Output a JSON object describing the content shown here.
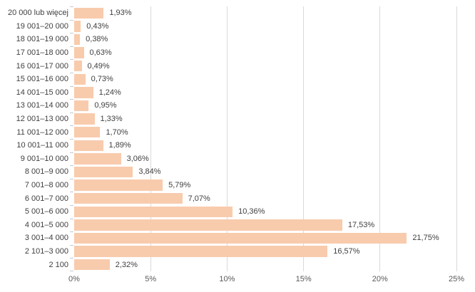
{
  "chart_data": {
    "type": "bar",
    "orientation": "horizontal",
    "title": "",
    "xlabel": "",
    "ylabel": "",
    "categories": [
      "20 000 lub więcej",
      "19 001–20 000",
      "18 001–19 000",
      "17 001–18 000",
      "16 001–17 000",
      "15 001–16 000",
      "14 001–15 000",
      "13 001–14 000",
      "12 001–13 000",
      "11 001–12 000",
      "10 001–11 000",
      "9 001–10 000",
      "8 001–9 000",
      "7 001–8 000",
      "6 001–7 000",
      "5 001–6 000",
      "4 001–5 000",
      "3 001–4 000",
      "2 101–3 000",
      "2 100"
    ],
    "values": [
      1.93,
      0.43,
      0.38,
      0.63,
      0.49,
      0.73,
      1.24,
      0.95,
      1.33,
      1.7,
      1.89,
      3.06,
      3.84,
      5.79,
      7.07,
      10.36,
      17.53,
      21.75,
      16.57,
      2.32
    ],
    "value_labels": [
      "1,93%",
      "0,43%",
      "0,38%",
      "0,63%",
      "0,49%",
      "0,73%",
      "1,24%",
      "0,95%",
      "1,33%",
      "1,70%",
      "1,89%",
      "3,06%",
      "3,84%",
      "5,79%",
      "7,07%",
      "10,36%",
      "17,53%",
      "21,75%",
      "16,57%",
      "2,32%"
    ],
    "x_ticks": [
      {
        "label": "0%",
        "value": 0
      },
      {
        "label": "5%",
        "value": 5
      },
      {
        "label": "10%",
        "value": 10
      },
      {
        "label": "15%",
        "value": 15
      },
      {
        "label": "20%",
        "value": 20
      },
      {
        "label": "25%",
        "value": 25
      }
    ],
    "xlim": [
      0,
      25
    ],
    "grid": true,
    "legend": false,
    "colors": {
      "bar_fill": "#F8CBAD",
      "gridline": "#D9D9D9",
      "data_label": "#404040",
      "category_label": "#404040",
      "axis_tick_label": "#595959"
    }
  }
}
